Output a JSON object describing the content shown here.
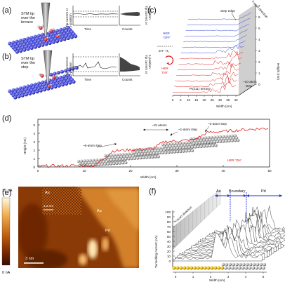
{
  "panels": {
    "a": {
      "label": "(a)",
      "caption_lines": [
        "STM tip",
        "over the",
        "terrace"
      ],
      "y_axis_lines": [
        "Tip current or",
        "z-position"
      ],
      "time_label": "Time",
      "counts_label": "Counts"
    },
    "b": {
      "label": "(b)",
      "caption_lines": [
        "STM tip",
        "over the",
        "step"
      ],
      "y_axis_lines": [
        "Tip current or",
        "z-position"
      ],
      "time_label": "Time",
      "counts_label": "Counts"
    },
    "c": {
      "label": "(c)",
      "step_edge": "Step edge",
      "y_scan": "Y-scan direction",
      "her_off_lines": [
        "HER",
        "'OFF'"
      ],
      "her_on_lines": [
        "HER",
        "'ON'"
      ],
      "reaction": "2H⁺ H₂",
      "terrace": "Pt(111) terrace",
      "ten_atom_lines": [
        "~10-atom",
        "step"
      ],
      "xlabel": "Width (nm)",
      "ylabel": "Height (nm)",
      "xticks": [
        "0",
        "5",
        "10",
        "15",
        "20",
        "25",
        "30",
        "35",
        "40"
      ],
      "yticks": [
        "0",
        "1",
        "2",
        "3",
        "4",
        "5",
        "6",
        "7"
      ],
      "colors": {
        "off": "#3344dd",
        "on": "#e02020"
      }
    },
    "d": {
      "label": "(d)",
      "ylabel": "Height (nm)",
      "xlabel": "Width (nm)",
      "xticks": [
        "0",
        "10",
        "20",
        "30",
        "40",
        "50"
      ],
      "yticks": [
        "0",
        "1",
        "2",
        "3",
        "4",
        "5"
      ],
      "ann_6": "~6-atom step",
      "ann_15": "~15 atoms",
      "ann_1": "~1-atom step",
      "ann_3": "~3-atom step",
      "her_on": "HER 'ON'"
    },
    "e": {
      "label": "(e)",
      "scale_max": "35 nA",
      "scale_min": "0 nA",
      "au": "Au",
      "au_inset": "Au",
      "pd": "Pd",
      "inset_scale": "1.2 nm",
      "scale_bar": "3 nm"
    },
    "f": {
      "label": "(f)",
      "y_scan": "Y-scan direction",
      "au": "Au",
      "boundary": "Boundary",
      "pd": "Pd",
      "ylabel": "Tunnelling current (nA)",
      "xlabel": "Width (nm)",
      "yticks": [
        "0",
        "10",
        "20",
        "30",
        "40",
        "50",
        "60",
        "70",
        "80",
        "90",
        "100"
      ],
      "xticks": [
        "0",
        "1",
        "2",
        "3",
        "4",
        "5"
      ]
    }
  }
}
